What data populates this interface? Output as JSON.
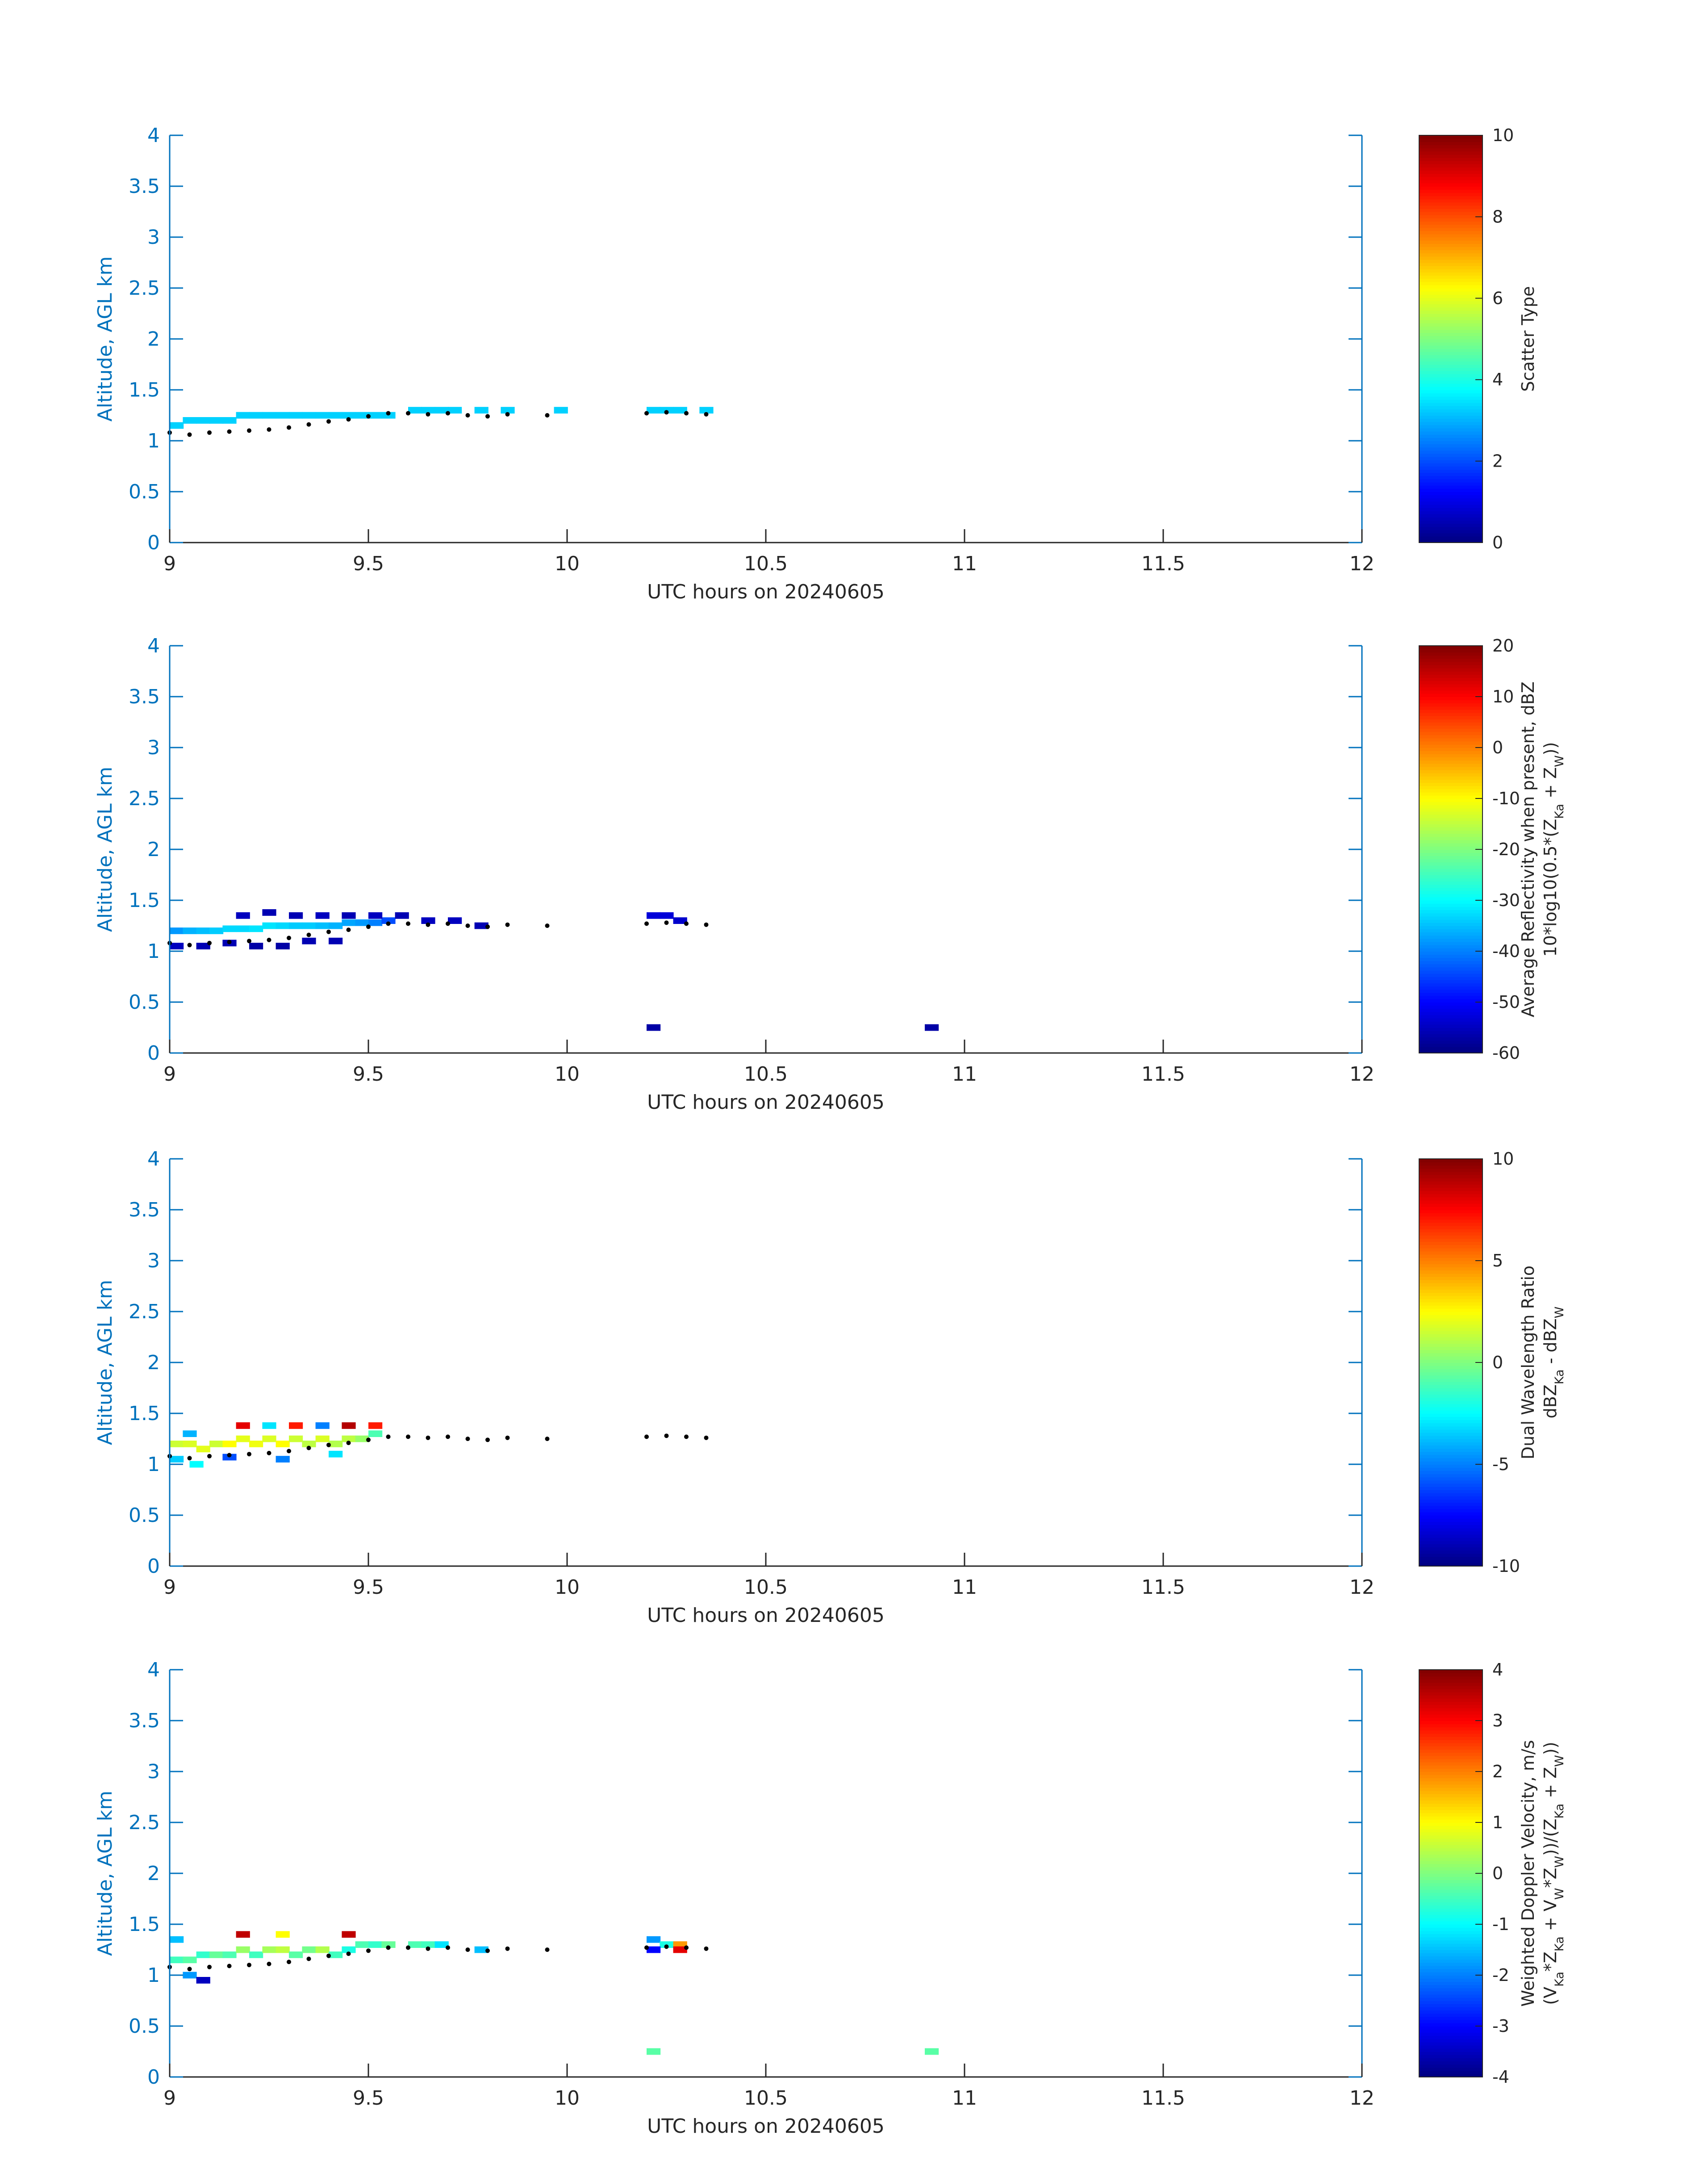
{
  "chart_data": [
    {
      "type": "heatmap",
      "xlabel": "UTC hours on 20240605",
      "ylabel": "Altitude, AGL km",
      "xlim": [
        9,
        12
      ],
      "ylim": [
        0,
        4
      ],
      "xticks": [
        9,
        9.5,
        10,
        10.5,
        11,
        11.5,
        12
      ],
      "yticks": [
        0,
        0.5,
        1,
        1.5,
        2,
        2.5,
        3,
        3.5,
        4
      ],
      "colorbar": {
        "label_lines": [
          "Scatter Type"
        ],
        "range": [
          0,
          10
        ],
        "ticks": [
          0,
          2,
          4,
          6,
          8,
          10
        ],
        "colormap": "jet"
      },
      "cells": [
        [
          9.0,
          1.15,
          3.3
        ],
        [
          9.033,
          1.2,
          3.3
        ],
        [
          9.067,
          1.2,
          3.3
        ],
        [
          9.1,
          1.2,
          3.3
        ],
        [
          9.133,
          1.2,
          3.3
        ],
        [
          9.167,
          1.25,
          3.3
        ],
        [
          9.2,
          1.25,
          3.3
        ],
        [
          9.233,
          1.25,
          3.3
        ],
        [
          9.267,
          1.25,
          3.3
        ],
        [
          9.3,
          1.25,
          3.3
        ],
        [
          9.333,
          1.25,
          3.3
        ],
        [
          9.367,
          1.25,
          3.3
        ],
        [
          9.4,
          1.25,
          3.3
        ],
        [
          9.433,
          1.25,
          3.3
        ],
        [
          9.467,
          1.25,
          3.3
        ],
        [
          9.5,
          1.25,
          3.3
        ],
        [
          9.533,
          1.25,
          3.3
        ],
        [
          9.6,
          1.3,
          3.3
        ],
        [
          9.633,
          1.3,
          3.3
        ],
        [
          9.667,
          1.3,
          3.3
        ],
        [
          9.7,
          1.3,
          3.3
        ],
        [
          9.767,
          1.3,
          3.3
        ],
        [
          9.833,
          1.3,
          3.3
        ],
        [
          9.967,
          1.3,
          3.3
        ],
        [
          10.2,
          1.3,
          3.3
        ],
        [
          10.233,
          1.3,
          3.3
        ],
        [
          10.267,
          1.3,
          3.3
        ],
        [
          10.333,
          1.3,
          3.3
        ]
      ],
      "trace": [
        [
          9.0,
          1.08
        ],
        [
          9.05,
          1.06
        ],
        [
          9.1,
          1.08
        ],
        [
          9.15,
          1.09
        ],
        [
          9.2,
          1.1
        ],
        [
          9.25,
          1.11
        ],
        [
          9.3,
          1.13
        ],
        [
          9.35,
          1.16
        ],
        [
          9.4,
          1.19
        ],
        [
          9.45,
          1.21
        ],
        [
          9.5,
          1.24
        ],
        [
          9.55,
          1.27
        ],
        [
          9.6,
          1.27
        ],
        [
          9.65,
          1.26
        ],
        [
          9.7,
          1.27
        ],
        [
          9.75,
          1.25
        ],
        [
          9.8,
          1.24
        ],
        [
          9.85,
          1.26
        ],
        [
          9.95,
          1.25
        ],
        [
          10.2,
          1.27
        ],
        [
          10.25,
          1.28
        ],
        [
          10.3,
          1.27
        ],
        [
          10.35,
          1.26
        ]
      ]
    },
    {
      "type": "heatmap",
      "xlabel": "UTC hours on 20240605",
      "ylabel": "Altitude, AGL km",
      "xlim": [
        9,
        12
      ],
      "ylim": [
        0,
        4
      ],
      "xticks": [
        9,
        9.5,
        10,
        10.5,
        11,
        11.5,
        12
      ],
      "yticks": [
        0,
        0.5,
        1,
        1.5,
        2,
        2.5,
        3,
        3.5,
        4
      ],
      "colorbar": {
        "label_lines": [
          "Average Reflectivity when present, dBZ",
          "10*log10(0.5*(Z_Ka + Z_W))"
        ],
        "range": [
          -60,
          20
        ],
        "ticks": [
          -60,
          -50,
          -40,
          -30,
          -20,
          -10,
          0,
          10,
          20
        ],
        "colormap": "jet"
      },
      "cells": [
        [
          9.0,
          1.2,
          -38
        ],
        [
          9.033,
          1.2,
          -36
        ],
        [
          9.067,
          1.2,
          -35
        ],
        [
          9.1,
          1.2,
          -34
        ],
        [
          9.133,
          1.22,
          -33
        ],
        [
          9.167,
          1.22,
          -33
        ],
        [
          9.2,
          1.22,
          -32
        ],
        [
          9.233,
          1.25,
          -32
        ],
        [
          9.267,
          1.25,
          -33
        ],
        [
          9.3,
          1.25,
          -34
        ],
        [
          9.333,
          1.25,
          -34
        ],
        [
          9.367,
          1.25,
          -35
        ],
        [
          9.4,
          1.25,
          -36
        ],
        [
          9.433,
          1.28,
          -37
        ],
        [
          9.467,
          1.28,
          -38
        ],
        [
          9.5,
          1.28,
          -40
        ],
        [
          9.533,
          1.3,
          -44
        ],
        [
          9.0,
          1.05,
          -55
        ],
        [
          9.067,
          1.05,
          -56
        ],
        [
          9.133,
          1.08,
          -56
        ],
        [
          9.2,
          1.05,
          -57
        ],
        [
          9.267,
          1.05,
          -57
        ],
        [
          9.333,
          1.1,
          -56
        ],
        [
          9.4,
          1.1,
          -56
        ],
        [
          9.167,
          1.35,
          -55
        ],
        [
          9.233,
          1.38,
          -56
        ],
        [
          9.3,
          1.35,
          -56
        ],
        [
          9.367,
          1.35,
          -55
        ],
        [
          9.433,
          1.35,
          -56
        ],
        [
          9.5,
          1.35,
          -55
        ],
        [
          9.567,
          1.35,
          -56
        ],
        [
          9.633,
          1.3,
          -55
        ],
        [
          9.7,
          1.3,
          -55
        ],
        [
          9.767,
          1.25,
          -56
        ],
        [
          10.2,
          1.35,
          -53
        ],
        [
          10.233,
          1.35,
          -53
        ],
        [
          10.267,
          1.3,
          -54
        ],
        [
          10.2,
          0.25,
          -57
        ],
        [
          10.9,
          0.25,
          -57
        ]
      ],
      "trace": [
        [
          9.0,
          1.08
        ],
        [
          9.05,
          1.06
        ],
        [
          9.1,
          1.08
        ],
        [
          9.15,
          1.09
        ],
        [
          9.2,
          1.1
        ],
        [
          9.25,
          1.11
        ],
        [
          9.3,
          1.13
        ],
        [
          9.35,
          1.16
        ],
        [
          9.4,
          1.19
        ],
        [
          9.45,
          1.21
        ],
        [
          9.5,
          1.24
        ],
        [
          9.55,
          1.27
        ],
        [
          9.6,
          1.27
        ],
        [
          9.65,
          1.26
        ],
        [
          9.7,
          1.27
        ],
        [
          9.75,
          1.25
        ],
        [
          9.8,
          1.24
        ],
        [
          9.85,
          1.26
        ],
        [
          9.95,
          1.25
        ],
        [
          10.2,
          1.27
        ],
        [
          10.25,
          1.28
        ],
        [
          10.3,
          1.27
        ],
        [
          10.35,
          1.26
        ]
      ]
    },
    {
      "type": "heatmap",
      "xlabel": "UTC hours on 20240605",
      "ylabel": "Altitude, AGL km",
      "xlim": [
        9,
        12
      ],
      "ylim": [
        0,
        4
      ],
      "xticks": [
        9,
        9.5,
        10,
        10.5,
        11,
        11.5,
        12
      ],
      "yticks": [
        0,
        0.5,
        1,
        1.5,
        2,
        2.5,
        3,
        3.5,
        4
      ],
      "colorbar": {
        "label_lines": [
          "Dual Wavelength Ratio",
          "dBZ_Ka - dBZ_W"
        ],
        "range": [
          -10,
          10
        ],
        "ticks": [
          -10,
          -5,
          0,
          5,
          10
        ],
        "colormap": "jet"
      },
      "cells": [
        [
          9.0,
          1.2,
          1.5
        ],
        [
          9.033,
          1.2,
          1.8
        ],
        [
          9.067,
          1.15,
          2
        ],
        [
          9.1,
          1.2,
          1.5
        ],
        [
          9.133,
          1.2,
          2.5
        ],
        [
          9.167,
          1.25,
          2
        ],
        [
          9.2,
          1.2,
          2.2
        ],
        [
          9.233,
          1.25,
          1.8
        ],
        [
          9.267,
          1.2,
          2.5
        ],
        [
          9.3,
          1.25,
          1.5
        ],
        [
          9.333,
          1.2,
          1.2
        ],
        [
          9.367,
          1.25,
          1.8
        ],
        [
          9.4,
          1.2,
          1
        ],
        [
          9.433,
          1.25,
          1.2
        ],
        [
          9.467,
          1.25,
          0.5
        ],
        [
          9.5,
          1.3,
          -1
        ],
        [
          9.033,
          1.3,
          -4
        ],
        [
          9.0,
          1.05,
          -3.5
        ],
        [
          9.05,
          1.0,
          -2.5
        ],
        [
          9.133,
          1.07,
          -6
        ],
        [
          9.267,
          1.05,
          -5
        ],
        [
          9.167,
          1.38,
          8
        ],
        [
          9.233,
          1.38,
          -3
        ],
        [
          9.3,
          1.38,
          7
        ],
        [
          9.367,
          1.38,
          -5
        ],
        [
          9.433,
          1.38,
          9
        ],
        [
          9.5,
          1.38,
          7
        ],
        [
          9.4,
          1.1,
          -3
        ]
      ],
      "trace": [
        [
          9.0,
          1.08
        ],
        [
          9.05,
          1.06
        ],
        [
          9.1,
          1.08
        ],
        [
          9.15,
          1.09
        ],
        [
          9.2,
          1.1
        ],
        [
          9.25,
          1.11
        ],
        [
          9.3,
          1.13
        ],
        [
          9.35,
          1.16
        ],
        [
          9.4,
          1.19
        ],
        [
          9.45,
          1.21
        ],
        [
          9.5,
          1.24
        ],
        [
          9.55,
          1.27
        ],
        [
          9.6,
          1.27
        ],
        [
          9.65,
          1.26
        ],
        [
          9.7,
          1.27
        ],
        [
          9.75,
          1.25
        ],
        [
          9.8,
          1.24
        ],
        [
          9.85,
          1.26
        ],
        [
          9.95,
          1.25
        ],
        [
          10.2,
          1.27
        ],
        [
          10.25,
          1.28
        ],
        [
          10.3,
          1.27
        ],
        [
          10.35,
          1.26
        ]
      ]
    },
    {
      "type": "heatmap",
      "xlabel": "UTC hours on 20240605",
      "ylabel": "Altitude, AGL km",
      "xlim": [
        9,
        12
      ],
      "ylim": [
        0,
        4
      ],
      "xticks": [
        9,
        9.5,
        10,
        10.5,
        11,
        11.5,
        12
      ],
      "yticks": [
        0,
        0.5,
        1,
        1.5,
        2,
        2.5,
        3,
        3.5,
        4
      ],
      "colorbar": {
        "label_lines": [
          "Weighted Doppler Velocity, m/s",
          "(V_Ka*Z_Ka + V_W*Z_W))/(Z_Ka + Z_W))"
        ],
        "range": [
          -4,
          4
        ],
        "ticks": [
          -4,
          -3,
          -2,
          -1,
          0,
          1,
          2,
          3,
          4
        ],
        "colormap": "jet"
      },
      "cells": [
        [
          9.0,
          1.15,
          -0.5
        ],
        [
          9.033,
          1.15,
          -0.3
        ],
        [
          9.067,
          1.2,
          -0.6
        ],
        [
          9.1,
          1.2,
          -0.2
        ],
        [
          9.133,
          1.2,
          -0.4
        ],
        [
          9.167,
          1.25,
          0.2
        ],
        [
          9.2,
          1.2,
          -0.5
        ],
        [
          9.233,
          1.25,
          0.3
        ],
        [
          9.267,
          1.25,
          0.5
        ],
        [
          9.3,
          1.2,
          -0.3
        ],
        [
          9.333,
          1.25,
          -0.1
        ],
        [
          9.367,
          1.25,
          0.4
        ],
        [
          9.4,
          1.2,
          -0.5
        ],
        [
          9.433,
          1.25,
          -0.8
        ],
        [
          9.467,
          1.3,
          -0.4
        ],
        [
          9.5,
          1.3,
          -0.6
        ],
        [
          9.533,
          1.3,
          -0.2
        ],
        [
          9.0,
          1.35,
          -1.5
        ],
        [
          9.267,
          1.4,
          1
        ],
        [
          9.033,
          1.0,
          -1.8
        ],
        [
          9.067,
          0.95,
          -3.5
        ],
        [
          9.167,
          1.4,
          3.5
        ],
        [
          9.433,
          1.4,
          3.5
        ],
        [
          9.6,
          1.3,
          -0.4
        ],
        [
          9.633,
          1.3,
          -0.5
        ],
        [
          9.667,
          1.3,
          -1.2
        ],
        [
          9.767,
          1.25,
          -1.5
        ],
        [
          10.2,
          1.35,
          -1.8
        ],
        [
          10.233,
          1.3,
          -0.8
        ],
        [
          10.267,
          1.3,
          1.8
        ],
        [
          10.2,
          1.25,
          -3
        ],
        [
          10.267,
          1.25,
          3.2
        ],
        [
          10.2,
          0.25,
          -0.3
        ],
        [
          10.9,
          0.25,
          -0.3
        ]
      ],
      "trace": [
        [
          9.0,
          1.08
        ],
        [
          9.05,
          1.06
        ],
        [
          9.1,
          1.08
        ],
        [
          9.15,
          1.09
        ],
        [
          9.2,
          1.1
        ],
        [
          9.25,
          1.11
        ],
        [
          9.3,
          1.13
        ],
        [
          9.35,
          1.16
        ],
        [
          9.4,
          1.19
        ],
        [
          9.45,
          1.21
        ],
        [
          9.5,
          1.24
        ],
        [
          9.55,
          1.27
        ],
        [
          9.6,
          1.27
        ],
        [
          9.65,
          1.26
        ],
        [
          9.7,
          1.27
        ],
        [
          9.75,
          1.25
        ],
        [
          9.8,
          1.24
        ],
        [
          9.85,
          1.26
        ],
        [
          9.95,
          1.25
        ],
        [
          10.2,
          1.27
        ],
        [
          10.25,
          1.28
        ],
        [
          10.3,
          1.27
        ],
        [
          10.35,
          1.26
        ]
      ]
    }
  ]
}
